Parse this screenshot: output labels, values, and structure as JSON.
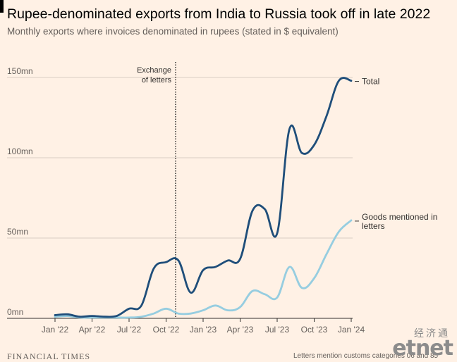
{
  "header": {
    "title": "Rupee-denominated exports from India to Russia took off in late 2022",
    "subtitle": "Monthly exports where invoices denominated in rupees (stated in $ equivalent)"
  },
  "chart_data": {
    "type": "line",
    "title": "Rupee-denominated exports from India to Russia took off in late 2022",
    "subtitle": "Monthly exports where invoices denominated in rupees (stated in $ equivalent)",
    "y_unit": "$ million",
    "ylim": [
      0,
      150
    ],
    "y_ticks": [
      0,
      50,
      100,
      150
    ],
    "y_tick_labels": [
      "0mn",
      "50mn",
      "100mn",
      "150mn"
    ],
    "x_tick_labels": [
      "Jan '22",
      "Apr '22",
      "Jul '22",
      "Oct '22",
      "Jan '23",
      "Apr '23",
      "Jul '23",
      "Oct '23",
      "Jan '24"
    ],
    "grid": true,
    "x": [
      "2022-01",
      "2022-02",
      "2022-03",
      "2022-04",
      "2022-05",
      "2022-06",
      "2022-07",
      "2022-08",
      "2022-09",
      "2022-10",
      "2022-11",
      "2022-12",
      "2023-01",
      "2023-02",
      "2023-03",
      "2023-04",
      "2023-05",
      "2023-06",
      "2023-07",
      "2023-08",
      "2023-09",
      "2023-10",
      "2023-11",
      "2023-12",
      "2024-01"
    ],
    "series": [
      {
        "name": "Total",
        "label": "Total",
        "color": "#1f4e7a",
        "values": [
          2,
          2.5,
          1,
          1.5,
          1,
          1.5,
          6,
          8,
          31,
          35,
          36,
          16,
          30,
          32,
          36,
          37,
          67,
          68,
          53,
          118,
          103,
          108,
          126,
          148,
          148
        ]
      },
      {
        "name": "Goods mentioned in letters",
        "label": [
          "Goods mentioned in",
          "letters"
        ],
        "color": "#96cde0",
        "values": [
          1,
          1.5,
          0.5,
          0.5,
          0.5,
          0.5,
          0.5,
          1,
          3,
          6,
          3,
          3,
          5,
          8,
          5,
          7,
          17,
          15,
          13,
          32,
          19,
          25,
          40,
          54,
          61
        ]
      }
    ],
    "annotations": [
      {
        "x": "2022-11",
        "lines": [
          "Exchange",
          "of letters"
        ],
        "style": "dotted-vertical"
      }
    ]
  },
  "footer": {
    "source": "FINANCIAL TIMES",
    "note": "Letters mention customs categories 06 and 85",
    "watermark_cn": "经济通",
    "watermark_en": "etnet"
  }
}
